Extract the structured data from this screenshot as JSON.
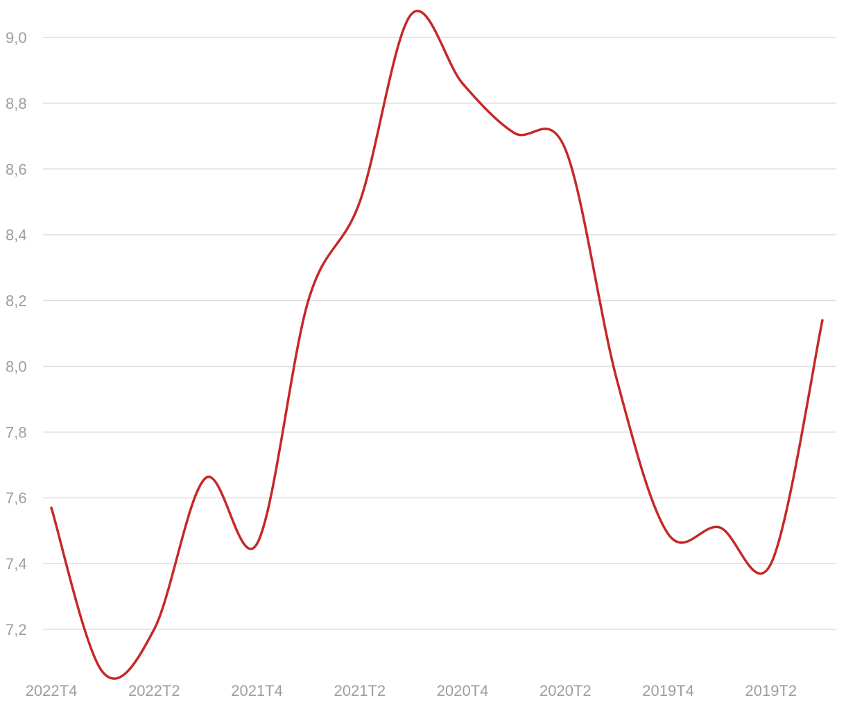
{
  "chart_data": {
    "type": "line",
    "x": [
      "2022T4",
      "2022T3",
      "2022T2",
      "2022T1",
      "2021T4",
      "2021T3",
      "2021T2",
      "2021T1",
      "2020T4",
      "2020T3",
      "2020T2",
      "2020T1",
      "2019T4",
      "2019T3",
      "2019T2",
      "2019T1"
    ],
    "series": [
      {
        "values": [
          7.57,
          7.07,
          7.2,
          7.66,
          7.46,
          8.2,
          8.5,
          9.07,
          8.86,
          8.71,
          8.66,
          7.96,
          7.49,
          7.51,
          7.4,
          8.14
        ]
      }
    ],
    "x_tick_labels": [
      "2022T4",
      "2022T2",
      "2021T4",
      "2021T2",
      "2020T4",
      "2020T2",
      "2019T4",
      "2019T2"
    ],
    "y_ticks": [
      "7,2",
      "7,4",
      "7,6",
      "7,8",
      "8,0",
      "8,2",
      "8,4",
      "8,6",
      "8,8",
      "9,0"
    ],
    "y_tick_values": [
      7.2,
      7.4,
      7.6,
      7.8,
      8.0,
      8.2,
      8.4,
      8.6,
      8.8,
      9.0
    ],
    "ylim": [
      7.0625,
      9.105
    ],
    "grid": "horizontal",
    "colors": {
      "series": "#c62828",
      "grid": "#dedede",
      "tick_text": "#9e9e9e"
    }
  }
}
